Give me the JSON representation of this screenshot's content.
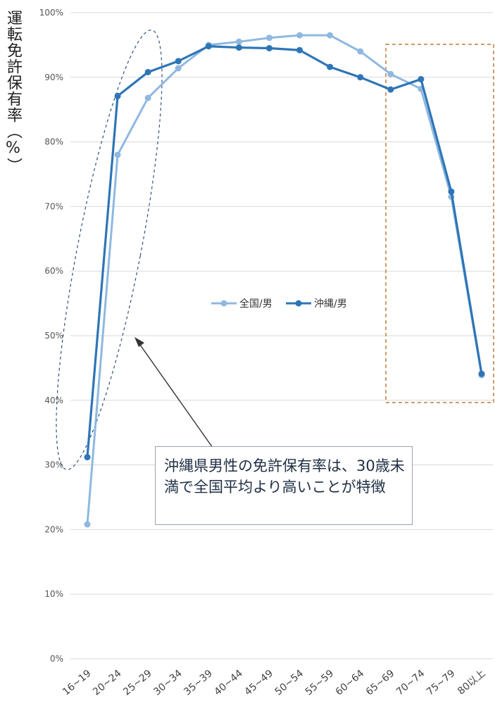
{
  "chart_data": {
    "type": "line",
    "ylabel": "運転免許保有率（%）",
    "categories": [
      "16~19",
      "20~24",
      "25~29",
      "30~34",
      "35~39",
      "40~44",
      "45~49",
      "50~54",
      "55~59",
      "60~64",
      "65~69",
      "70~74",
      "75~79",
      "80以上"
    ],
    "y_ticks": [
      "0%",
      "10%",
      "20%",
      "30%",
      "40%",
      "50%",
      "60%",
      "70%",
      "80%",
      "90%",
      "100%"
    ],
    "ylim": [
      0,
      100
    ],
    "series": [
      {
        "name": "全国/男",
        "color": "#8fb8e0",
        "values": [
          20.8,
          78.0,
          86.8,
          91.4,
          95.0,
          95.5,
          96.1,
          96.5,
          96.5,
          94.0,
          90.5,
          88.2,
          71.5,
          43.9
        ]
      },
      {
        "name": "沖縄/男",
        "color": "#2e75b6",
        "values": [
          31.2,
          87.1,
          90.8,
          92.5,
          94.8,
          94.6,
          94.5,
          94.2,
          91.6,
          90.0,
          88.1,
          89.7,
          72.3,
          44.1
        ]
      }
    ],
    "grid": true,
    "legend_position": "center",
    "annotation": "沖縄県男性の免許保有率は、30歳未満で全国平均より高いことが特徴"
  }
}
